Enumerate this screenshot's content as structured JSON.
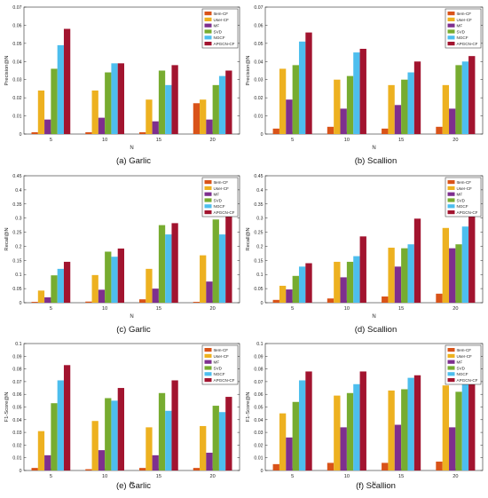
{
  "colors": [
    "#D95319",
    "#EDB120",
    "#7E2F8E",
    "#77AC30",
    "#4DBEEE",
    "#A2142F"
  ],
  "chart_data": [
    {
      "type": "bar",
      "caption": "(a) Garlic",
      "xlabel": "N",
      "ylabel": "Precision@N",
      "categories": [
        "5",
        "10",
        "15",
        "20"
      ],
      "ylim": [
        0,
        0.07
      ],
      "yticks": [
        0,
        0.01,
        0.02,
        0.03,
        0.04,
        0.05,
        0.06,
        0.07
      ],
      "ytick_labels": [
        "0",
        "0.01",
        "0.02",
        "0.03",
        "0.04",
        "0.05",
        "0.06",
        "0.07"
      ],
      "legend": "top-right",
      "series": [
        {
          "name": "Item-CF",
          "values": [
            0.001,
            0.001,
            0.001,
            0.017
          ]
        },
        {
          "name": "User-CF",
          "values": [
            0.024,
            0.024,
            0.019,
            0.019
          ]
        },
        {
          "name": "MF",
          "values": [
            0.008,
            0.009,
            0.007,
            0.008
          ]
        },
        {
          "name": "SVD",
          "values": [
            0.036,
            0.034,
            0.035,
            0.027
          ]
        },
        {
          "name": "NGCF",
          "values": [
            0.049,
            0.039,
            0.027,
            0.032
          ]
        },
        {
          "name": "APGCN-CF",
          "values": [
            0.058,
            0.039,
            0.038,
            0.035
          ]
        }
      ]
    },
    {
      "type": "bar",
      "caption": "(b) Scallion",
      "xlabel": "N",
      "ylabel": "Precision@N",
      "categories": [
        "5",
        "10",
        "15",
        "20"
      ],
      "ylim": [
        0,
        0.07
      ],
      "yticks": [
        0,
        0.01,
        0.02,
        0.03,
        0.04,
        0.05,
        0.06,
        0.07
      ],
      "ytick_labels": [
        "0",
        "0.01",
        "0.02",
        "0.03",
        "0.04",
        "0.05",
        "0.06",
        "0.07"
      ],
      "legend": "top-right",
      "series": [
        {
          "name": "Item-CF",
          "values": [
            0.003,
            0.004,
            0.003,
            0.004
          ]
        },
        {
          "name": "User-CF",
          "values": [
            0.036,
            0.03,
            0.027,
            0.027
          ]
        },
        {
          "name": "MF",
          "values": [
            0.019,
            0.014,
            0.016,
            0.014
          ]
        },
        {
          "name": "SVD",
          "values": [
            0.038,
            0.032,
            0.03,
            0.038
          ]
        },
        {
          "name": "NGCF",
          "values": [
            0.051,
            0.045,
            0.034,
            0.04
          ]
        },
        {
          "name": "APGCN-CF",
          "values": [
            0.056,
            0.047,
            0.04,
            0.043
          ]
        }
      ]
    },
    {
      "type": "bar",
      "caption": "(c) Garlic",
      "xlabel": "N",
      "ylabel": "Recall@N",
      "categories": [
        "5",
        "10",
        "15",
        "20"
      ],
      "ylim": [
        0,
        0.45
      ],
      "yticks": [
        0,
        0.05,
        0.1,
        0.15,
        0.2,
        0.25,
        0.3,
        0.35,
        0.4,
        0.45
      ],
      "ytick_labels": [
        "0",
        "0.05",
        "0.1",
        "0.15",
        "0.2",
        "0.25",
        "0.3",
        "0.35",
        "0.4",
        "0.45"
      ],
      "legend": "top-right",
      "series": [
        {
          "name": "Item-CF",
          "values": [
            0.003,
            0.004,
            0.012,
            0.003
          ]
        },
        {
          "name": "User-CF",
          "values": [
            0.043,
            0.098,
            0.12,
            0.168
          ]
        },
        {
          "name": "MF",
          "values": [
            0.019,
            0.046,
            0.05,
            0.075
          ]
        },
        {
          "name": "SVD",
          "values": [
            0.097,
            0.181,
            0.275,
            0.295
          ]
        },
        {
          "name": "NGCF",
          "values": [
            0.12,
            0.163,
            0.242,
            0.242
          ]
        },
        {
          "name": "APGCN-CF",
          "values": [
            0.145,
            0.192,
            0.282,
            0.328
          ]
        }
      ]
    },
    {
      "type": "bar",
      "caption": "(d) Scallion",
      "xlabel": "N",
      "ylabel": "Recall@N",
      "categories": [
        "5",
        "10",
        "15",
        "20"
      ],
      "ylim": [
        0,
        0.45
      ],
      "yticks": [
        0,
        0.05,
        0.1,
        0.15,
        0.2,
        0.25,
        0.3,
        0.35,
        0.4,
        0.45
      ],
      "ytick_labels": [
        "0",
        "0.05",
        "0.1",
        "0.15",
        "0.2",
        "0.25",
        "0.3",
        "0.35",
        "0.4",
        "0.45"
      ],
      "legend": "top-right",
      "series": [
        {
          "name": "Item-CF",
          "values": [
            0.01,
            0.015,
            0.022,
            0.032
          ]
        },
        {
          "name": "User-CF",
          "values": [
            0.06,
            0.145,
            0.195,
            0.265
          ]
        },
        {
          "name": "MF",
          "values": [
            0.047,
            0.09,
            0.128,
            0.193
          ]
        },
        {
          "name": "SVD",
          "values": [
            0.095,
            0.145,
            0.193,
            0.207
          ]
        },
        {
          "name": "NGCF",
          "values": [
            0.128,
            0.165,
            0.207,
            0.27
          ]
        },
        {
          "name": "APGCN-CF",
          "values": [
            0.14,
            0.235,
            0.298,
            0.323
          ]
        }
      ]
    },
    {
      "type": "bar",
      "caption": "(e) Garlic",
      "xlabel": "N",
      "ylabel": "F1-Score@N",
      "categories": [
        "5",
        "10",
        "15",
        "20"
      ],
      "ylim": [
        0,
        0.1
      ],
      "yticks": [
        0,
        0.01,
        0.02,
        0.03,
        0.04,
        0.05,
        0.06,
        0.07,
        0.08,
        0.09,
        0.1
      ],
      "ytick_labels": [
        "0",
        "0.01",
        "0.02",
        "0.03",
        "0.04",
        "0.05",
        "0.06",
        "0.07",
        "0.08",
        "0.09",
        "0.1"
      ],
      "legend": "top-right",
      "series": [
        {
          "name": "Item-CF",
          "values": [
            0.002,
            0.001,
            0.002,
            0.002
          ]
        },
        {
          "name": "User-CF",
          "values": [
            0.031,
            0.039,
            0.034,
            0.035
          ]
        },
        {
          "name": "MF",
          "values": [
            0.012,
            0.016,
            0.012,
            0.014
          ]
        },
        {
          "name": "SVD",
          "values": [
            0.053,
            0.057,
            0.061,
            0.051
          ]
        },
        {
          "name": "NGCF",
          "values": [
            0.071,
            0.055,
            0.047,
            0.046
          ]
        },
        {
          "name": "APGCN-CF",
          "values": [
            0.083,
            0.065,
            0.071,
            0.058
          ]
        }
      ]
    },
    {
      "type": "bar",
      "caption": "(f) Scallion",
      "xlabel": "N",
      "ylabel": "F1-Score@N",
      "categories": [
        "5",
        "10",
        "15",
        "20"
      ],
      "ylim": [
        0,
        0.1
      ],
      "yticks": [
        0,
        0.01,
        0.02,
        0.03,
        0.04,
        0.05,
        0.06,
        0.07,
        0.08,
        0.09,
        0.1
      ],
      "ytick_labels": [
        "0",
        "0.01",
        "0.02",
        "0.03",
        "0.04",
        "0.05",
        "0.06",
        "0.07",
        "0.08",
        "0.09",
        "0.1"
      ],
      "legend": "top-right",
      "series": [
        {
          "name": "Item-CF",
          "values": [
            0.005,
            0.006,
            0.006,
            0.007
          ]
        },
        {
          "name": "User-CF",
          "values": [
            0.045,
            0.059,
            0.063,
            0.067
          ]
        },
        {
          "name": "MF",
          "values": [
            0.026,
            0.034,
            0.036,
            0.034
          ]
        },
        {
          "name": "SVD",
          "values": [
            0.054,
            0.061,
            0.064,
            0.062
          ]
        },
        {
          "name": "NGCF",
          "values": [
            0.071,
            0.068,
            0.073,
            0.071
          ]
        },
        {
          "name": "APGCN-CF",
          "values": [
            0.078,
            0.078,
            0.075,
            0.081
          ]
        }
      ]
    }
  ]
}
